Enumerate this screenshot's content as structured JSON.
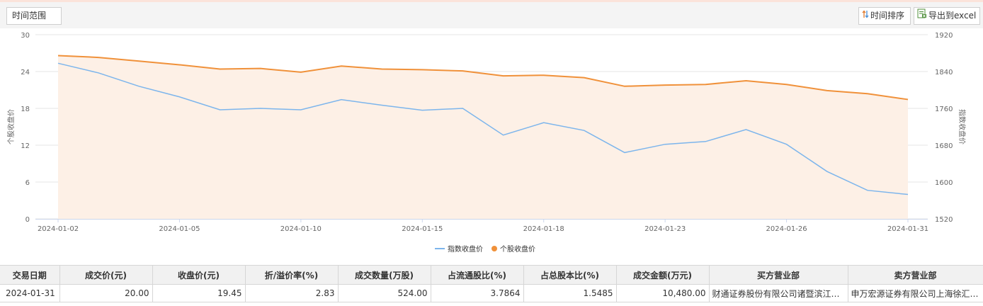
{
  "toolbar": {
    "range_label": "时间范围",
    "sort_label": "时间排序",
    "export_label": "导出到excel",
    "sort_icon": "sort-arrows-icon",
    "export_icon": "excel-export-icon"
  },
  "chart_data": {
    "type": "line",
    "x": [
      "2024-01-02",
      "2024-01-03",
      "2024-01-04",
      "2024-01-05",
      "2024-01-08",
      "2024-01-09",
      "2024-01-10",
      "2024-01-11",
      "2024-01-12",
      "2024-01-15",
      "2024-01-16",
      "2024-01-17",
      "2024-01-18",
      "2024-01-19",
      "2024-01-22",
      "2024-01-23",
      "2024-01-24",
      "2024-01-25",
      "2024-01-26",
      "2024-01-29",
      "2024-01-30",
      "2024-01-31"
    ],
    "x_tick_labels": [
      "2024-01-02",
      "2024-01-05",
      "2024-01-10",
      "2024-01-15",
      "2024-01-18",
      "2024-01-23",
      "2024-01-26",
      "2024-01-31"
    ],
    "y_left": {
      "label": "个股收盘价",
      "ticks": [
        "30",
        "24",
        "18",
        "12",
        "6",
        "0"
      ],
      "lim": [
        0,
        30
      ]
    },
    "y_right": {
      "label": "指数收盘价",
      "ticks": [
        "1920",
        "1840",
        "1760",
        "1680",
        "1600",
        "1520"
      ],
      "lim": [
        1520,
        1920
      ]
    },
    "series": [
      {
        "name": "指数收盘价",
        "axis": "right",
        "color": "#7cb5ec",
        "values": [
          1858,
          1837,
          1808,
          1785,
          1757,
          1760,
          1757,
          1779,
          1767,
          1756,
          1760,
          1702,
          1729,
          1712,
          1664,
          1682,
          1688,
          1714,
          1682,
          1623,
          1582,
          1573
        ]
      },
      {
        "name": "个股收盘价",
        "axis": "left",
        "color": "#f0913a",
        "fill": "#fdf0e6",
        "values": [
          26.6,
          26.3,
          25.7,
          25.1,
          24.4,
          24.5,
          23.9,
          24.9,
          24.4,
          24.3,
          24.1,
          23.3,
          23.4,
          23.0,
          21.6,
          21.8,
          21.9,
          22.5,
          21.9,
          20.9,
          20.4,
          19.45
        ]
      }
    ],
    "legend": [
      {
        "label": "指数收盘价",
        "marker": "line"
      },
      {
        "label": "个股收盘价",
        "marker": "dot"
      }
    ],
    "legend_position": "bottom-center",
    "grid": true
  },
  "table": {
    "headers": [
      "交易日期",
      "成交价(元)",
      "收盘价(元)",
      "折/溢价率(%)",
      "成交数量(万股)",
      "占流通股比(%)",
      "占总股本比(%)",
      "成交金额(万元)",
      "买方营业部",
      "卖方营业部"
    ],
    "rows": [
      [
        "2024-01-31",
        "20.00",
        "19.45",
        "2.83",
        "524.00",
        "3.7864",
        "1.5485",
        "10,480.00",
        "财通证券股份有限公司诸暨滨江…",
        "申万宏源证券有限公司上海徐汇…"
      ]
    ]
  }
}
